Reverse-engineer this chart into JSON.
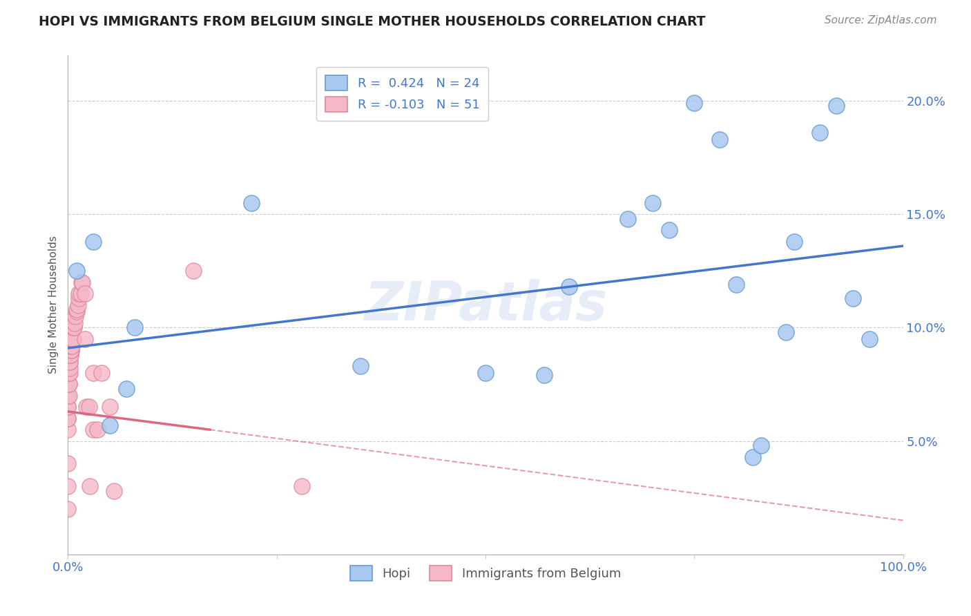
{
  "title": "HOPI VS IMMIGRANTS FROM BELGIUM SINGLE MOTHER HOUSEHOLDS CORRELATION CHART",
  "source": "Source: ZipAtlas.com",
  "ylabel": "Single Mother Households",
  "xlim": [
    0,
    1.0
  ],
  "ylim": [
    0,
    0.22
  ],
  "ytick_vals": [
    0.0,
    0.05,
    0.1,
    0.15,
    0.2
  ],
  "ytick_labels": [
    "",
    "5.0%",
    "10.0%",
    "15.0%",
    "20.0%"
  ],
  "xtick_vals": [
    0.0,
    0.25,
    0.5,
    0.75,
    1.0
  ],
  "xtick_labels": [
    "0.0%",
    "",
    "",
    "",
    "100.0%"
  ],
  "hopi_R": 0.424,
  "hopi_N": 24,
  "belgium_R": -0.103,
  "belgium_N": 51,
  "hopi_color": "#a8c8f0",
  "hopi_edge_color": "#6699cc",
  "belgium_color": "#f5b8c8",
  "belgium_edge_color": "#dd8899",
  "trend_blue_color": "#4477cc",
  "trend_pink_color": "#dd6680",
  "background_color": "#ffffff",
  "hopi_x": [
    0.01,
    0.03,
    0.05,
    0.07,
    0.08,
    0.22,
    0.35,
    0.5,
    0.57,
    0.6,
    0.67,
    0.7,
    0.72,
    0.75,
    0.78,
    0.8,
    0.82,
    0.83,
    0.86,
    0.87,
    0.9,
    0.92,
    0.94,
    0.96
  ],
  "hopi_y": [
    0.125,
    0.138,
    0.057,
    0.073,
    0.1,
    0.155,
    0.083,
    0.08,
    0.079,
    0.118,
    0.148,
    0.155,
    0.143,
    0.199,
    0.183,
    0.119,
    0.043,
    0.048,
    0.098,
    0.138,
    0.186,
    0.198,
    0.113,
    0.095
  ],
  "belgium_x": [
    0.0,
    0.0,
    0.0,
    0.0,
    0.0,
    0.0,
    0.0,
    0.0,
    0.0,
    0.001,
    0.001,
    0.001,
    0.001,
    0.002,
    0.002,
    0.002,
    0.002,
    0.003,
    0.003,
    0.004,
    0.004,
    0.004,
    0.004,
    0.005,
    0.005,
    0.006,
    0.006,
    0.007,
    0.008,
    0.009,
    0.01,
    0.01,
    0.012,
    0.013,
    0.013,
    0.015,
    0.016,
    0.017,
    0.02,
    0.02,
    0.022,
    0.025,
    0.026,
    0.03,
    0.03,
    0.035,
    0.04,
    0.05,
    0.055,
    0.15,
    0.28
  ],
  "belgium_y": [
    0.02,
    0.03,
    0.04,
    0.055,
    0.06,
    0.06,
    0.065,
    0.065,
    0.07,
    0.07,
    0.075,
    0.075,
    0.08,
    0.08,
    0.082,
    0.085,
    0.085,
    0.088,
    0.088,
    0.09,
    0.09,
    0.09,
    0.092,
    0.092,
    0.095,
    0.095,
    0.1,
    0.1,
    0.102,
    0.105,
    0.107,
    0.108,
    0.11,
    0.113,
    0.115,
    0.115,
    0.12,
    0.12,
    0.095,
    0.115,
    0.065,
    0.065,
    0.03,
    0.08,
    0.055,
    0.055,
    0.08,
    0.065,
    0.028,
    0.125,
    0.03
  ],
  "watermark": "ZIPatlas",
  "blue_line_x0": 0.0,
  "blue_line_y0": 0.091,
  "blue_line_x1": 1.0,
  "blue_line_y1": 0.136,
  "pink_line_x0": 0.0,
  "pink_line_y0": 0.063,
  "pink_line_x1_solid": 0.17,
  "pink_line_y1_solid": 0.055,
  "pink_line_x1_dash": 1.0,
  "pink_line_y1_dash": 0.015
}
